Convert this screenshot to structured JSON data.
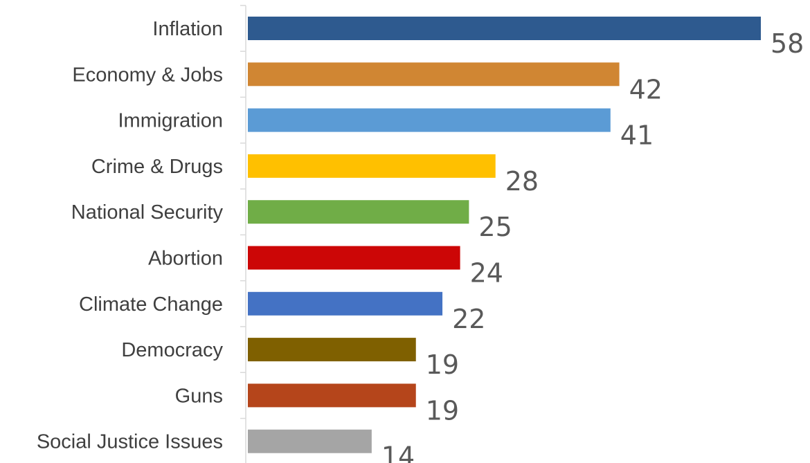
{
  "chart_data": {
    "type": "bar",
    "orientation": "horizontal",
    "title": "",
    "xlabel": "",
    "ylabel": "",
    "categories": [
      "Inflation",
      "Economy & Jobs",
      "Immigration",
      "Crime & Drugs",
      "National Security",
      "Abortion",
      "Climate Change",
      "Democracy",
      "Guns",
      "Social Justice Issues"
    ],
    "values": [
      58,
      42,
      41,
      28,
      25,
      24,
      22,
      19,
      19,
      14
    ],
    "colors": [
      "#2e5a8f",
      "#d08633",
      "#5b9bd5",
      "#ffc000",
      "#70ad47",
      "#cc0606",
      "#4472c4",
      "#7f6000",
      "#b5451b",
      "#a5a5a5"
    ],
    "xlim": [
      0,
      58
    ],
    "grid": false,
    "legend": "none",
    "data_labels": true
  }
}
